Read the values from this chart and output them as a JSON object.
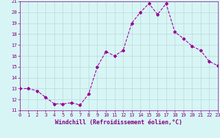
{
  "x": [
    0,
    1,
    2,
    3,
    4,
    5,
    6,
    7,
    8,
    9,
    10,
    11,
    12,
    13,
    14,
    15,
    16,
    17,
    18,
    19,
    20,
    21,
    22,
    23
  ],
  "y": [
    13.0,
    13.0,
    12.8,
    12.2,
    11.6,
    11.6,
    11.7,
    11.5,
    12.5,
    15.0,
    16.4,
    16.0,
    16.5,
    19.0,
    20.0,
    20.8,
    19.8,
    20.8,
    18.2,
    17.6,
    16.9,
    16.5,
    15.5,
    15.1
  ],
  "line_color": "#990099",
  "marker": "D",
  "marker_size": 2.0,
  "bg_color": "#d8f5f5",
  "grid_color": "#b8d8d8",
  "xlabel": "Windchill (Refroidissement éolien,°C)",
  "ylim": [
    11,
    21
  ],
  "xlim": [
    0,
    23
  ],
  "yticks": [
    11,
    12,
    13,
    14,
    15,
    16,
    17,
    18,
    19,
    20,
    21
  ],
  "xticks": [
    0,
    1,
    2,
    3,
    4,
    5,
    6,
    7,
    8,
    9,
    10,
    11,
    12,
    13,
    14,
    15,
    16,
    17,
    18,
    19,
    20,
    21,
    22,
    23
  ],
  "tick_color": "#800080",
  "tick_fontsize": 5.0,
  "xlabel_fontsize": 6.0,
  "xlabel_color": "#800080"
}
